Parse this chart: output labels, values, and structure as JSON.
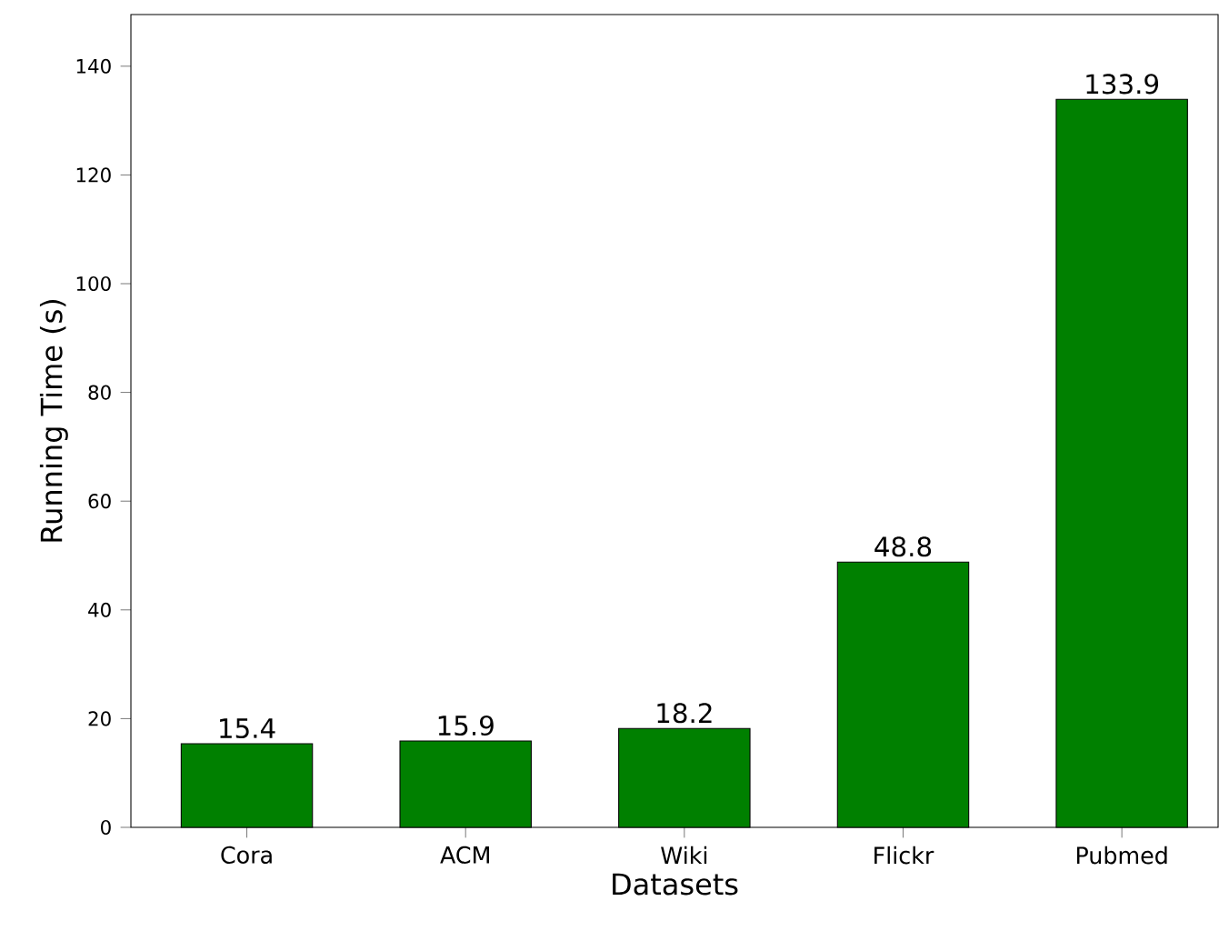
{
  "chart_data": {
    "type": "bar",
    "xlabel": "Datasets",
    "ylabel": "Running Time (s)",
    "categories": [
      "Cora",
      "ACM",
      "Wiki",
      "Flickr",
      "Pubmed"
    ],
    "values": [
      15.4,
      15.9,
      18.2,
      48.8,
      133.9
    ],
    "color": "#008000",
    "ylim": [
      0,
      149.5
    ],
    "yticks": [
      0,
      20,
      40,
      60,
      80,
      100,
      120,
      140
    ],
    "data_labels": true
  }
}
